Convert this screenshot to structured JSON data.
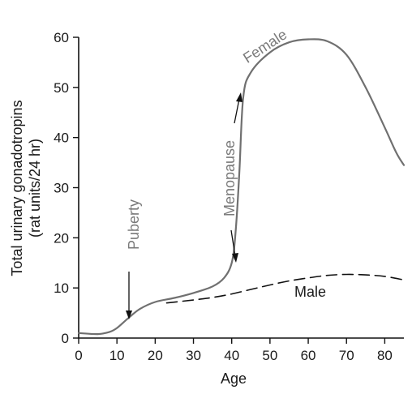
{
  "chart_data": {
    "type": "line",
    "title": "",
    "xlabel": "Age",
    "ylabel_lines": [
      "Total urinary gonadotropins",
      "(rat units/24 hr)"
    ],
    "xlim": [
      0,
      85
    ],
    "ylim": [
      0,
      60
    ],
    "x_ticks": [
      0,
      10,
      20,
      30,
      40,
      50,
      60,
      70,
      80
    ],
    "y_ticks": [
      0,
      10,
      20,
      30,
      40,
      50,
      60
    ],
    "grid": false,
    "series": [
      {
        "name": "Female",
        "style": "solid",
        "color": "#707070",
        "x": [
          0,
          5,
          8,
          10,
          13,
          16,
          20,
          25,
          30,
          35,
          38,
          40,
          41,
          42,
          43,
          45,
          50,
          55,
          60,
          65,
          70,
          75,
          80,
          83,
          85
        ],
        "y": [
          1,
          0.8,
          1.2,
          2,
          4,
          5.8,
          7.2,
          8,
          9,
          10.3,
          12,
          15,
          21,
          33,
          48,
          53,
          57,
          59,
          59.6,
          59.2,
          56.5,
          50,
          42,
          37,
          34.5
        ]
      },
      {
        "name": "Male",
        "style": "dashed",
        "color": "#111111",
        "x": [
          23,
          30,
          35,
          40,
          45,
          50,
          55,
          60,
          65,
          70,
          75,
          80,
          85
        ],
        "y": [
          7,
          7.6,
          8.1,
          8.8,
          9.7,
          10.6,
          11.4,
          12,
          12.5,
          12.7,
          12.6,
          12.3,
          11.6
        ]
      }
    ],
    "annotations": [
      {
        "id": "female",
        "text": "Female"
      },
      {
        "id": "male",
        "text": "Male"
      },
      {
        "id": "puberty",
        "text": "Puberty"
      },
      {
        "id": "menopause",
        "text": "Menopause"
      }
    ]
  },
  "colors": {
    "axis": "#111111",
    "female_line": "#707070",
    "male_line": "#111111",
    "annotation_gray": "#7a7a7a"
  }
}
